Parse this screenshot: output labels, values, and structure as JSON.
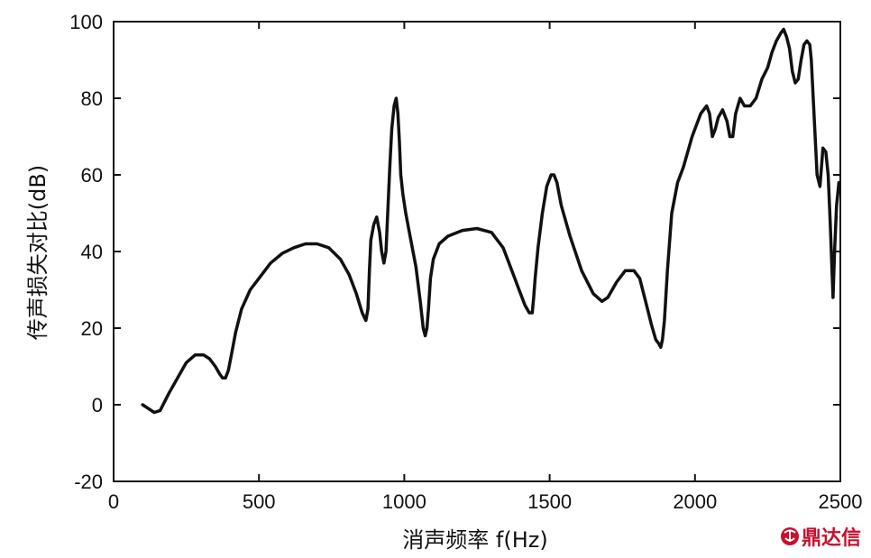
{
  "chart_data": {
    "type": "line",
    "title": "",
    "xlabel": "消声频率 f(Hz)",
    "ylabel": "传声损失对比(dB)",
    "xlim": [
      0,
      2500
    ],
    "ylim": [
      -20,
      100
    ],
    "xticks": [
      "0",
      "500",
      "1000",
      "1500",
      "2000",
      "2500"
    ],
    "yticks": [
      "-20",
      "0",
      "20",
      "40",
      "60",
      "80",
      "100"
    ],
    "grid": false,
    "line_color": "#111111",
    "series": [
      {
        "x": [
          100,
          120,
          140,
          160,
          190,
          220,
          250,
          280,
          310,
          330,
          350,
          365,
          375,
          385,
          395,
          405,
          420,
          440,
          470,
          500,
          540,
          580,
          620,
          660,
          700,
          740,
          780,
          810,
          835,
          855,
          868,
          875,
          880,
          885,
          895,
          905,
          915,
          922,
          930,
          937,
          943,
          950,
          957,
          965,
          972,
          978,
          983,
          988,
          995,
          1005,
          1020,
          1040,
          1055,
          1065,
          1072,
          1078,
          1083,
          1090,
          1100,
          1120,
          1150,
          1200,
          1250,
          1300,
          1340,
          1370,
          1395,
          1415,
          1430,
          1440,
          1445,
          1450,
          1460,
          1475,
          1490,
          1505,
          1515,
          1525,
          1540,
          1570,
          1610,
          1650,
          1680,
          1700,
          1730,
          1760,
          1790,
          1810,
          1830,
          1850,
          1865,
          1875,
          1882,
          1888,
          1895,
          1905,
          1920,
          1940,
          1960,
          1990,
          2020,
          2040,
          2050,
          2060,
          2070,
          2080,
          2095,
          2110,
          2120,
          2130,
          2140,
          2155,
          2170,
          2190,
          2210,
          2230,
          2250,
          2265,
          2280,
          2295,
          2305,
          2315,
          2325,
          2335,
          2345,
          2355,
          2365,
          2375,
          2385,
          2395,
          2400,
          2410,
          2420,
          2430,
          2440,
          2450,
          2458,
          2465,
          2470,
          2475,
          2480,
          2487,
          2495
        ],
        "y": [
          0,
          -1,
          -2,
          -1.5,
          3,
          7,
          11,
          13,
          13,
          12,
          10,
          8,
          7,
          7,
          9,
          13,
          19,
          25,
          30,
          33,
          37,
          39.5,
          41,
          42,
          42,
          41,
          38,
          34,
          29,
          24,
          22,
          25,
          35,
          43,
          47,
          49,
          45,
          40,
          37,
          40,
          50,
          62,
          72,
          78,
          80,
          76,
          69,
          60,
          55,
          50,
          44,
          36,
          27,
          20,
          18,
          20,
          25,
          33,
          38,
          42,
          44,
          45.5,
          46,
          45,
          41,
          35,
          30,
          26,
          24,
          24,
          28,
          33,
          41,
          50,
          57,
          60,
          60,
          58,
          52,
          44,
          35,
          29,
          27,
          28,
          32,
          35,
          35,
          33,
          27,
          21,
          17,
          16,
          15,
          17,
          22,
          35,
          50,
          58,
          62,
          70,
          76,
          78,
          76,
          70,
          72,
          75,
          77,
          74,
          70,
          70,
          76,
          80,
          78,
          78,
          80,
          85,
          88,
          92,
          95,
          97,
          98,
          96,
          93,
          87,
          84,
          85,
          90,
          94,
          95,
          94,
          90,
          75,
          60,
          57,
          67,
          66,
          60,
          48,
          38,
          28,
          40,
          52,
          58
        ]
      }
    ]
  }
}
